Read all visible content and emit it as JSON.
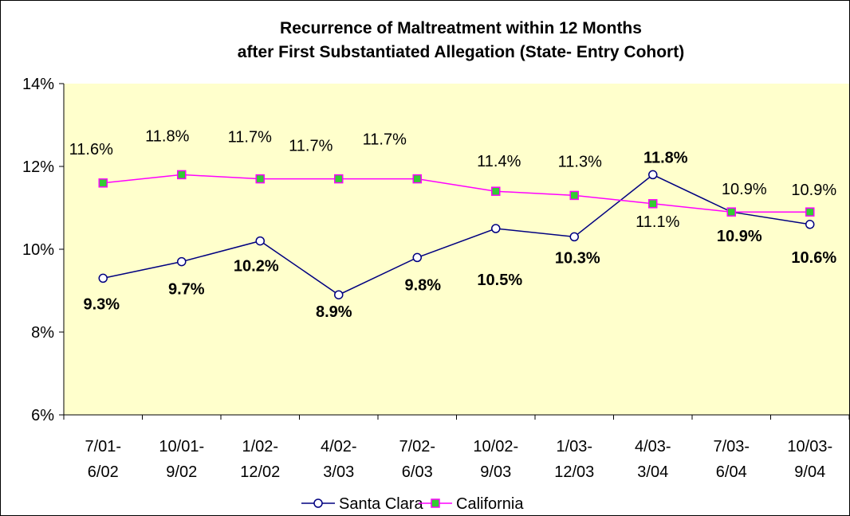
{
  "chart_data": {
    "type": "line",
    "title": "Recurrence of Maltreatment within 12 Months\nafter First Substantiated Allegation  (State- Entry Cohort)",
    "categories": [
      "7/01-\n6/02",
      "10/01-\n9/02",
      "1/02-\n12/02",
      "4/02-\n3/03",
      "7/02-\n6/03",
      "10/02-\n9/03",
      "1/03-\n12/03",
      "4/03-\n3/04",
      "7/03-\n6/04",
      "10/03-\n9/04"
    ],
    "series": [
      {
        "name": "Santa Clara",
        "color": "#000080",
        "marker": "circle",
        "marker_fill": "#ffffff",
        "values": [
          9.3,
          9.7,
          10.2,
          8.9,
          9.8,
          10.5,
          10.3,
          11.8,
          10.9,
          10.6
        ],
        "value_labels": [
          "9.3%",
          "9.7%",
          "10.2%",
          "8.9%",
          "9.8%",
          "10.5%",
          "10.3%",
          "11.8%",
          "10.9%",
          "10.6%"
        ]
      },
      {
        "name": "California",
        "color": "#ff00ff",
        "marker": "square",
        "marker_fill": "#33cc33",
        "values": [
          11.6,
          11.8,
          11.7,
          11.7,
          11.7,
          11.4,
          11.3,
          11.1,
          10.9,
          10.9
        ],
        "value_labels": [
          "11.6%",
          "11.8%",
          "11.7%",
          "11.7%",
          "11.7%",
          "11.4%",
          "11.3%",
          "11.1%",
          "10.9%",
          "10.9%"
        ]
      }
    ],
    "ylim": [
      6,
      14
    ],
    "yticks": [
      {
        "value": 6,
        "label": "6%"
      },
      {
        "value": 8,
        "label": "8%"
      },
      {
        "value": 10,
        "label": "10%"
      },
      {
        "value": 12,
        "label": "12%"
      },
      {
        "value": 14,
        "label": "14%"
      }
    ],
    "grid": false,
    "legend": "bottom",
    "plot_background": "#ffffcc"
  }
}
